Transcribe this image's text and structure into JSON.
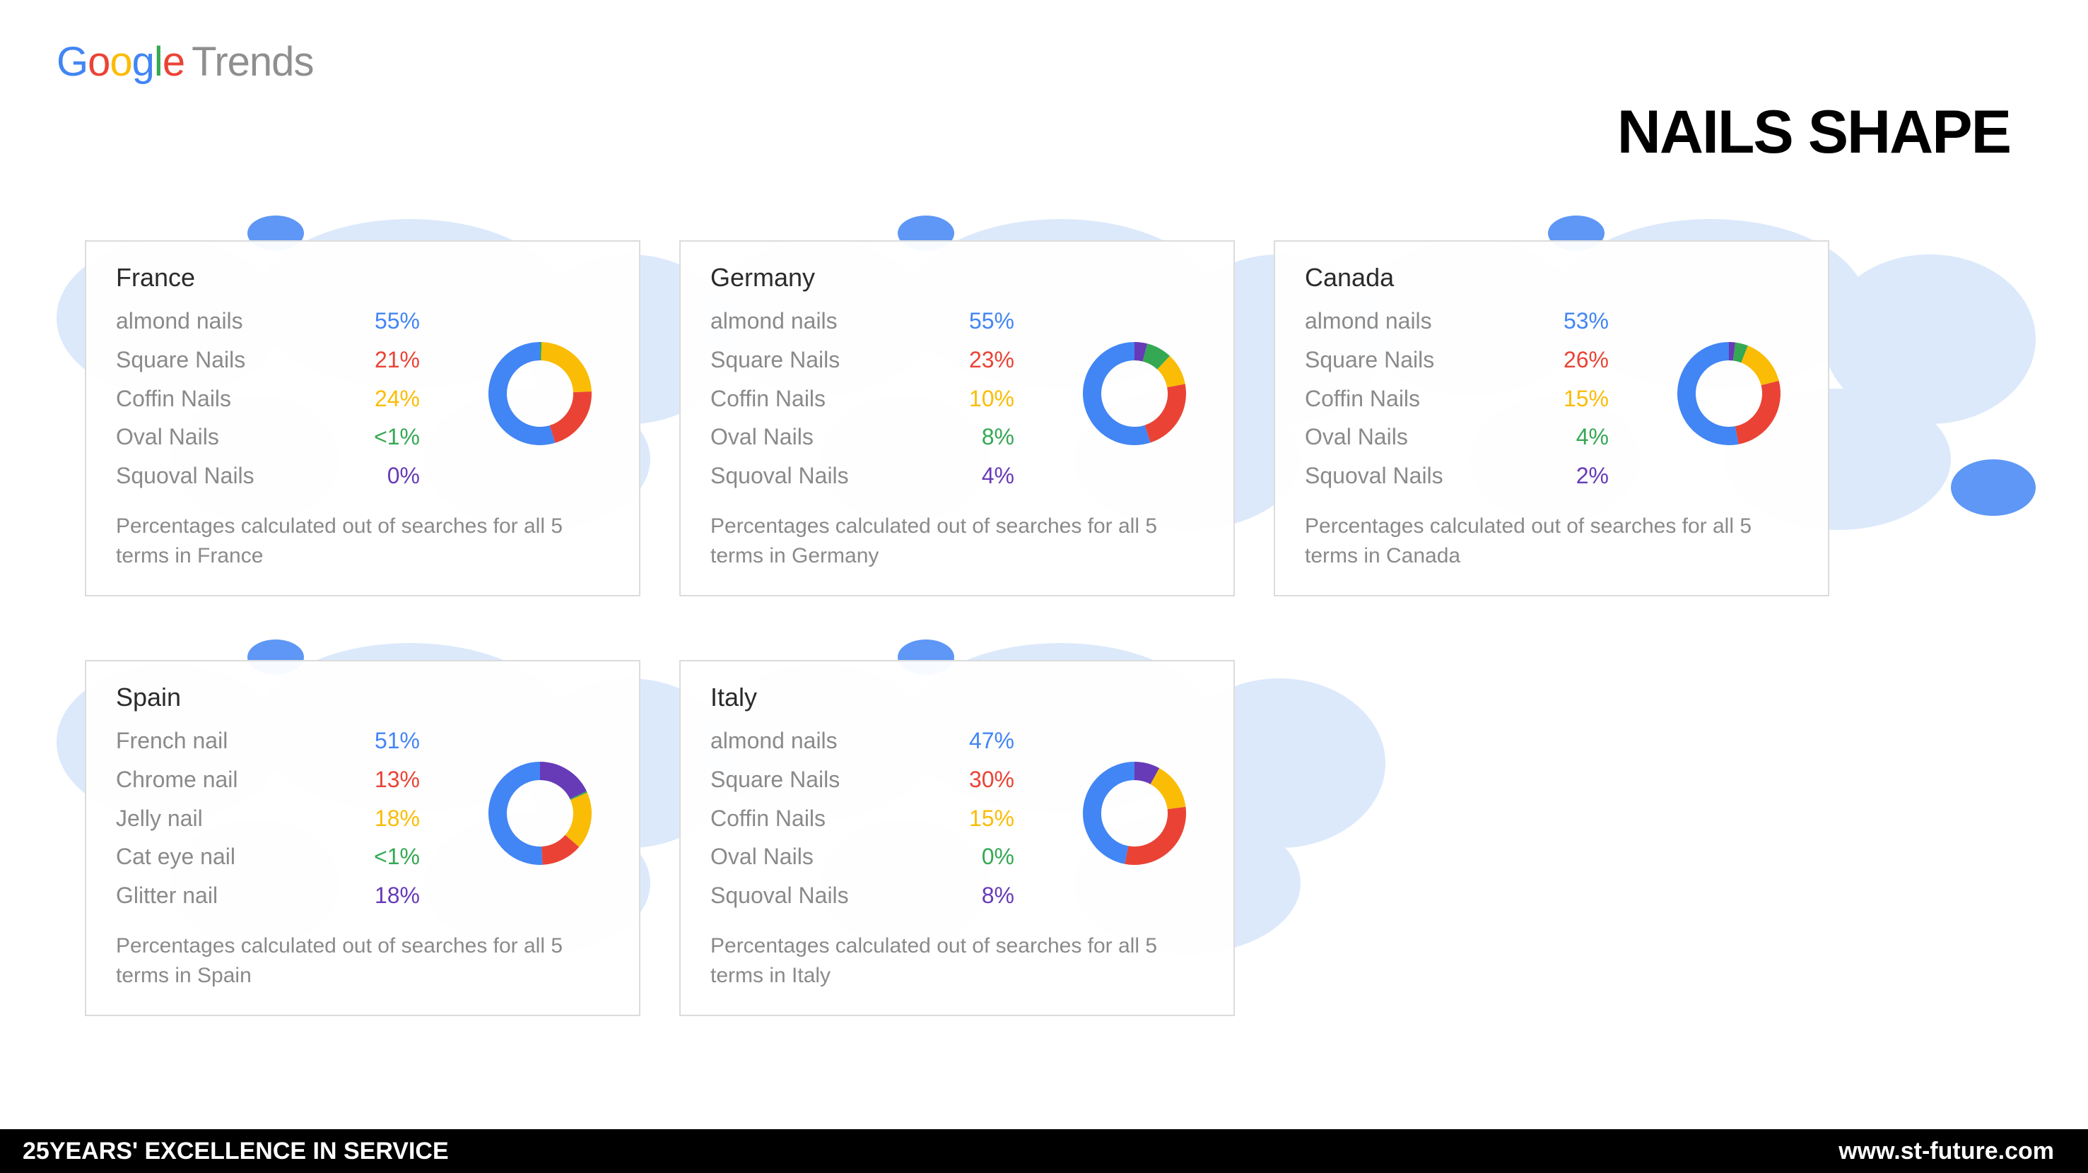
{
  "logo": {
    "g1": "G",
    "o1": "o",
    "o2": "o",
    "g2": "g",
    "l1": "l",
    "e1": "e",
    "trends": "Trends"
  },
  "page_title": "NAILS SHAPE",
  "colors": {
    "blue": "#4285f4",
    "red": "#ea4335",
    "yellow": "#fbbc05",
    "green": "#34a853",
    "purple": "#673ab7",
    "label_grey": "#8a8a8a"
  },
  "donut_style": {
    "stroke_width": 26,
    "radius": 60,
    "bg": "#ffffff"
  },
  "cards": [
    {
      "id": "france",
      "title": "France",
      "items": [
        {
          "label": "almond nails",
          "value_text": "55%",
          "value": 55,
          "color": "#4285f4"
        },
        {
          "label": "Square Nails",
          "value_text": "21%",
          "value": 21,
          "color": "#ea4335"
        },
        {
          "label": "Coffin Nails",
          "value_text": "24%",
          "value": 24,
          "color": "#fbbc05"
        },
        {
          "label": "Oval Nails",
          "value_text": "<1%",
          "value": 0.5,
          "color": "#34a853"
        },
        {
          "label": "Squoval Nails",
          "value_text": "0%",
          "value": 0,
          "color": "#673ab7"
        }
      ],
      "note": "Percentages calculated out of searches for all 5 terms in France"
    },
    {
      "id": "germany",
      "title": "Germany",
      "items": [
        {
          "label": "almond nails",
          "value_text": "55%",
          "value": 55,
          "color": "#4285f4"
        },
        {
          "label": "Square Nails",
          "value_text": "23%",
          "value": 23,
          "color": "#ea4335"
        },
        {
          "label": "Coffin Nails",
          "value_text": "10%",
          "value": 10,
          "color": "#fbbc05"
        },
        {
          "label": "Oval Nails",
          "value_text": "8%",
          "value": 8,
          "color": "#34a853"
        },
        {
          "label": "Squoval Nails",
          "value_text": "4%",
          "value": 4,
          "color": "#673ab7"
        }
      ],
      "note": "Percentages calculated out of searches for all 5 terms in Germany"
    },
    {
      "id": "canada",
      "title": "Canada",
      "items": [
        {
          "label": "almond nails",
          "value_text": "53%",
          "value": 53,
          "color": "#4285f4"
        },
        {
          "label": "Square Nails",
          "value_text": "26%",
          "value": 26,
          "color": "#ea4335"
        },
        {
          "label": "Coffin Nails",
          "value_text": "15%",
          "value": 15,
          "color": "#fbbc05"
        },
        {
          "label": "Oval Nails",
          "value_text": "4%",
          "value": 4,
          "color": "#34a853"
        },
        {
          "label": "Squoval Nails",
          "value_text": "2%",
          "value": 2,
          "color": "#673ab7"
        }
      ],
      "note": "Percentages calculated out of searches for all 5 terms in Canada"
    },
    {
      "id": "spain",
      "title": "Spain",
      "items": [
        {
          "label": "French nail",
          "value_text": "51%",
          "value": 51,
          "color": "#4285f4"
        },
        {
          "label": "Chrome nail",
          "value_text": "13%",
          "value": 13,
          "color": "#ea4335"
        },
        {
          "label": "Jelly nail",
          "value_text": "18%",
          "value": 18,
          "color": "#fbbc05"
        },
        {
          "label": "Cat eye nail",
          "value_text": "<1%",
          "value": 0.5,
          "color": "#34a853"
        },
        {
          "label": "Glitter nail",
          "value_text": "18%",
          "value": 18,
          "color": "#673ab7"
        }
      ],
      "note": "Percentages calculated out of searches for all 5 terms in Spain"
    },
    {
      "id": "italy",
      "title": "Italy",
      "items": [
        {
          "label": "almond nails",
          "value_text": "47%",
          "value": 47,
          "color": "#4285f4"
        },
        {
          "label": "Square Nails",
          "value_text": "30%",
          "value": 30,
          "color": "#ea4335"
        },
        {
          "label": "Coffin Nails",
          "value_text": "15%",
          "value": 15,
          "color": "#fbbc05"
        },
        {
          "label": "Oval Nails",
          "value_text": "0%",
          "value": 0,
          "color": "#34a853"
        },
        {
          "label": "Squoval Nails",
          "value_text": "8%",
          "value": 8,
          "color": "#673ab7"
        }
      ],
      "note": "Percentages calculated out of searches for all 5 terms in Italy"
    }
  ],
  "footer": {
    "left": "25YEARS' EXCELLENCE IN SERVICE",
    "right": "www.st-future.com"
  },
  "map_bg": {
    "fill_light": "#d7e6fb",
    "fill_mid": "#9ec1f2",
    "fill_dark": "#4285f4"
  }
}
